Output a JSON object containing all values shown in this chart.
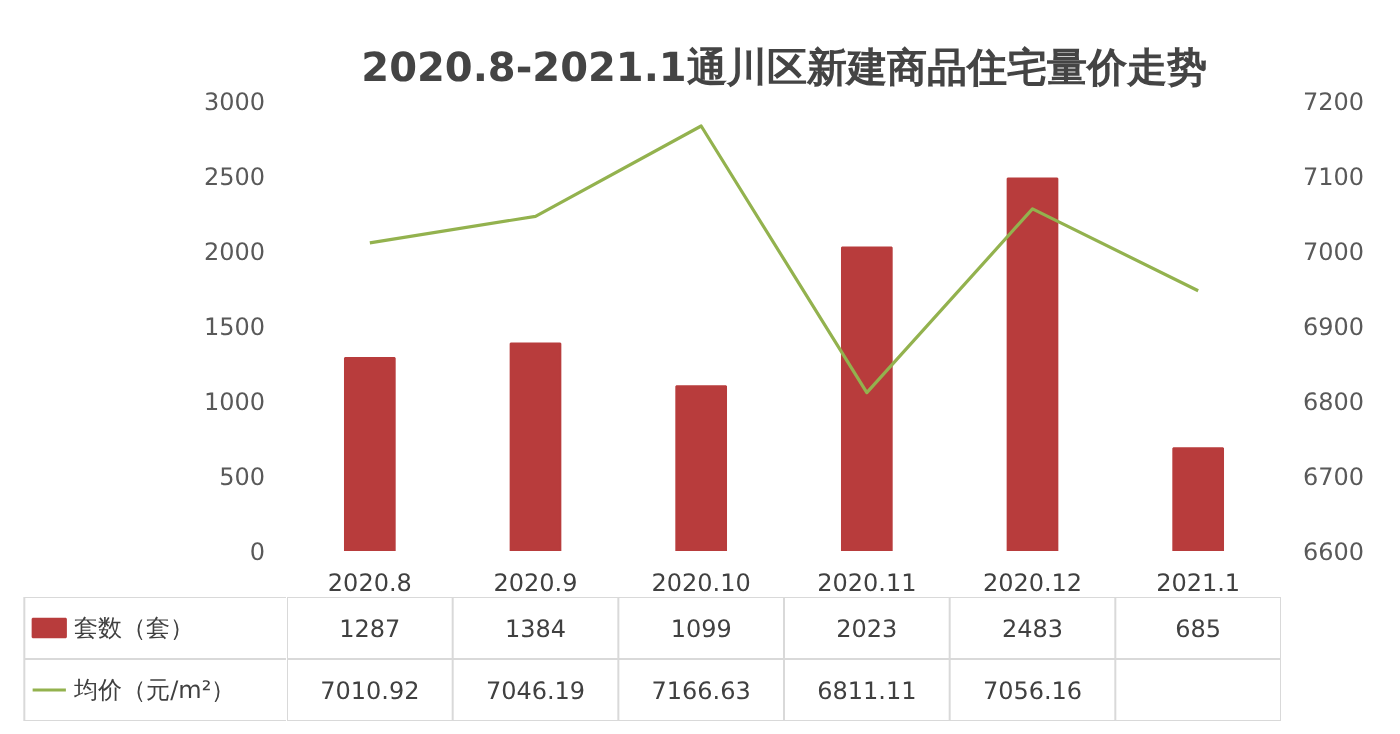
{
  "chart_data": {
    "type": "bar",
    "title": "2020.8-2021.1通川区新建商品住宅量价走势",
    "categories": [
      "2020.8",
      "2020.9",
      "2020.10",
      "2020.11",
      "2020.12",
      "2021.1"
    ],
    "series": [
      {
        "name": "套数（套）",
        "color": "#b83c3c",
        "values": [
          1287,
          1384,
          1099,
          2023,
          2483,
          685
        ],
        "value_labels": [
          "1287",
          "1384",
          "1099",
          "2023",
          "2483",
          "685"
        ]
      },
      {
        "name": "均价（元/m²）",
        "type": "line",
        "axis": "y2",
        "color": "#93b24e",
        "values": [
          7010.92,
          7046.19,
          7166.63,
          6811.11,
          7056.16,
          6947
        ],
        "value_labels": [
          "7010.92",
          "7046.19",
          "7166.63",
          "6811.11",
          "7056.16",
          null
        ]
      }
    ],
    "ylim": [
      0,
      3000
    ],
    "yticks": [
      0,
      500,
      1000,
      1500,
      2000,
      2500,
      3000
    ],
    "y2lim": [
      6600,
      7200
    ],
    "y2ticks": [
      6600,
      6700,
      6800,
      6900,
      7000,
      7100,
      7200
    ],
    "grid": false,
    "legend": "bottom",
    "line_style": "solid",
    "marker": "none"
  }
}
